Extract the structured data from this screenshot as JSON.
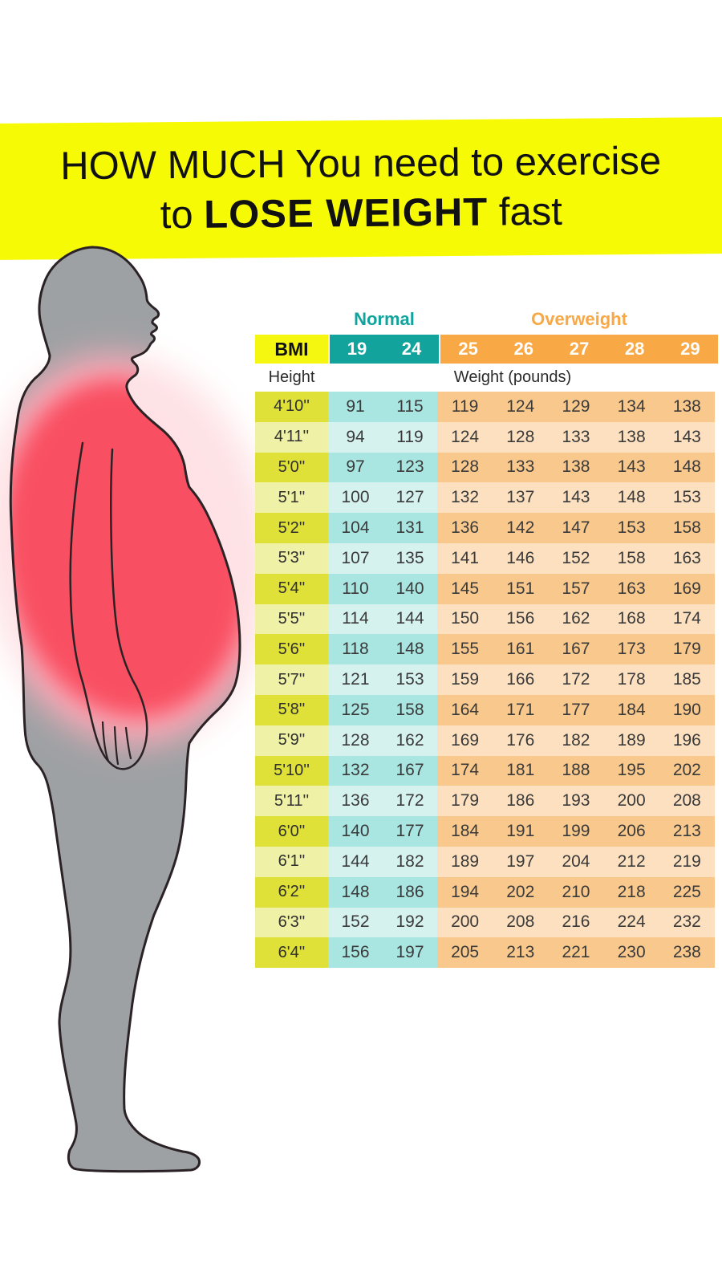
{
  "title": {
    "line1": "HOW MUCH You need to exercise",
    "line2_prefix": "to ",
    "line2_bold": "LOSE WEIGHT",
    "line2_suffix": " fast"
  },
  "banner_color": "#f7fa05",
  "figure": {
    "description": "side profile silhouette of overweight man with belly highlighted",
    "body_color": "#9ea1a4",
    "outline_color": "#2b2226",
    "highlight_color": "#f94f62",
    "highlight_glow_color": "#fbaab8"
  },
  "bmi_table": {
    "group_labels": [
      {
        "label": "Normal",
        "color": "#12a39c"
      },
      {
        "label": "Overweight",
        "color": "#f8a844"
      }
    ],
    "corner_label": "BMI",
    "header_values": [
      "19",
      "24",
      "25",
      "26",
      "27",
      "28",
      "29"
    ],
    "height_label": "Height",
    "weight_label": "Weight (pounds)",
    "colors": {
      "corner_bg": "#f5f711",
      "normal_header_bg": "#12a39c",
      "overweight_header_bg": "#f8a844",
      "height_odd": "#dfe139",
      "height_even": "#eff1a6",
      "normal_odd": "#a9e6e2",
      "normal_even": "#d6f2ef",
      "overweight_odd": "#f9c88c",
      "overweight_even": "#fce0bf"
    },
    "rows": [
      {
        "height": "4'10''",
        "weights": [
          "91",
          "115",
          "119",
          "124",
          "129",
          "134",
          "138"
        ]
      },
      {
        "height": "4'11''",
        "weights": [
          "94",
          "119",
          "124",
          "128",
          "133",
          "138",
          "143"
        ]
      },
      {
        "height": "5'0''",
        "weights": [
          "97",
          "123",
          "128",
          "133",
          "138",
          "143",
          "148"
        ]
      },
      {
        "height": "5'1''",
        "weights": [
          "100",
          "127",
          "132",
          "137",
          "143",
          "148",
          "153"
        ]
      },
      {
        "height": "5'2''",
        "weights": [
          "104",
          "131",
          "136",
          "142",
          "147",
          "153",
          "158"
        ]
      },
      {
        "height": "5'3''",
        "weights": [
          "107",
          "135",
          "141",
          "146",
          "152",
          "158",
          "163"
        ]
      },
      {
        "height": "5'4''",
        "weights": [
          "110",
          "140",
          "145",
          "151",
          "157",
          "163",
          "169"
        ]
      },
      {
        "height": "5'5''",
        "weights": [
          "114",
          "144",
          "150",
          "156",
          "162",
          "168",
          "174"
        ]
      },
      {
        "height": "5'6''",
        "weights": [
          "118",
          "148",
          "155",
          "161",
          "167",
          "173",
          "179"
        ]
      },
      {
        "height": "5'7''",
        "weights": [
          "121",
          "153",
          "159",
          "166",
          "172",
          "178",
          "185"
        ]
      },
      {
        "height": "5'8''",
        "weights": [
          "125",
          "158",
          "164",
          "171",
          "177",
          "184",
          "190"
        ]
      },
      {
        "height": "5'9''",
        "weights": [
          "128",
          "162",
          "169",
          "176",
          "182",
          "189",
          "196"
        ]
      },
      {
        "height": "5'10''",
        "weights": [
          "132",
          "167",
          "174",
          "181",
          "188",
          "195",
          "202"
        ]
      },
      {
        "height": "5'11''",
        "weights": [
          "136",
          "172",
          "179",
          "186",
          "193",
          "200",
          "208"
        ]
      },
      {
        "height": "6'0''",
        "weights": [
          "140",
          "177",
          "184",
          "191",
          "199",
          "206",
          "213"
        ]
      },
      {
        "height": "6'1''",
        "weights": [
          "144",
          "182",
          "189",
          "197",
          "204",
          "212",
          "219"
        ]
      },
      {
        "height": "6'2''",
        "weights": [
          "148",
          "186",
          "194",
          "202",
          "210",
          "218",
          "225"
        ]
      },
      {
        "height": "6'3''",
        "weights": [
          "152",
          "192",
          "200",
          "208",
          "216",
          "224",
          "232"
        ]
      },
      {
        "height": "6'4''",
        "weights": [
          "156",
          "197",
          "205",
          "213",
          "221",
          "230",
          "238"
        ]
      }
    ]
  },
  "chart_data": {
    "type": "table",
    "title": "HOW MUCH You need to exercise to LOSE WEIGHT fast",
    "column_groups": [
      {
        "name": "Normal",
        "bmi": [
          19,
          24
        ]
      },
      {
        "name": "Overweight",
        "bmi": [
          25,
          26,
          27,
          28,
          29
        ]
      }
    ],
    "row_header": "Height",
    "value_unit": "Weight (pounds)",
    "heights": [
      "4'10''",
      "4'11''",
      "5'0''",
      "5'1''",
      "5'2''",
      "5'3''",
      "5'4''",
      "5'5''",
      "5'6''",
      "5'7''",
      "5'8''",
      "5'9''",
      "5'10''",
      "5'11''",
      "6'0''",
      "6'1''",
      "6'2''",
      "6'3''",
      "6'4''"
    ],
    "weights_by_bmi": {
      "19": [
        91,
        94,
        97,
        100,
        104,
        107,
        110,
        114,
        118,
        121,
        125,
        128,
        132,
        136,
        140,
        144,
        148,
        152,
        156
      ],
      "24": [
        115,
        119,
        123,
        127,
        131,
        135,
        140,
        144,
        148,
        153,
        158,
        162,
        167,
        172,
        177,
        182,
        186,
        192,
        197
      ],
      "25": [
        119,
        124,
        128,
        132,
        136,
        141,
        145,
        150,
        155,
        159,
        164,
        169,
        174,
        179,
        184,
        189,
        194,
        200,
        205
      ],
      "26": [
        124,
        128,
        133,
        137,
        142,
        146,
        151,
        156,
        161,
        166,
        171,
        176,
        181,
        186,
        191,
        197,
        202,
        208,
        213
      ],
      "27": [
        129,
        133,
        138,
        143,
        147,
        152,
        157,
        162,
        167,
        172,
        177,
        182,
        188,
        193,
        199,
        204,
        210,
        216,
        221
      ],
      "28": [
        134,
        138,
        143,
        148,
        153,
        158,
        163,
        168,
        173,
        178,
        184,
        189,
        195,
        200,
        206,
        212,
        218,
        224,
        230
      ],
      "29": [
        138,
        143,
        148,
        153,
        158,
        163,
        169,
        174,
        179,
        185,
        190,
        196,
        202,
        208,
        213,
        219,
        225,
        232,
        238
      ]
    }
  }
}
